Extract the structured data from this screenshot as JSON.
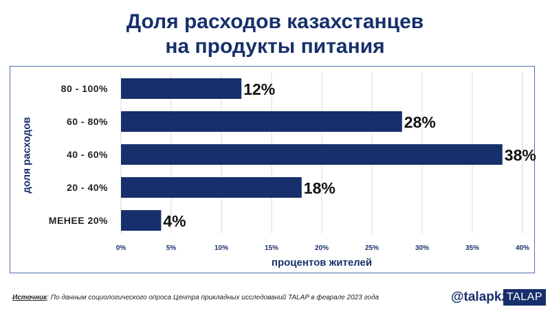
{
  "title_line1": "Доля расходов казахстанцев",
  "title_line2": "на продукты питания",
  "chart_data": {
    "type": "bar",
    "orientation": "horizontal",
    "categories": [
      "80 - 100%",
      "60 - 80%",
      "40 - 60%",
      "20 - 40%",
      "МЕНЕЕ 20%"
    ],
    "values": [
      12,
      28,
      38,
      18,
      4
    ],
    "value_labels": [
      "12%",
      "28%",
      "38%",
      "18%",
      "4%"
    ],
    "ylabel": "доля расходов",
    "xlabel": "процентов жителей",
    "xlim": [
      0,
      40
    ],
    "xticks": [
      "0%",
      "5%",
      "10%",
      "15%",
      "20%",
      "25%",
      "30%",
      "35%",
      "40%"
    ],
    "grid": "vertical",
    "bar_color": "#17306b"
  },
  "footer": {
    "source_label": "Источник",
    "source_text": ": По данным социологического опроса Центра прикладных исследований TALAP в феврале 2023 года"
  },
  "handle": "@talapkz",
  "brand": "TALAP"
}
